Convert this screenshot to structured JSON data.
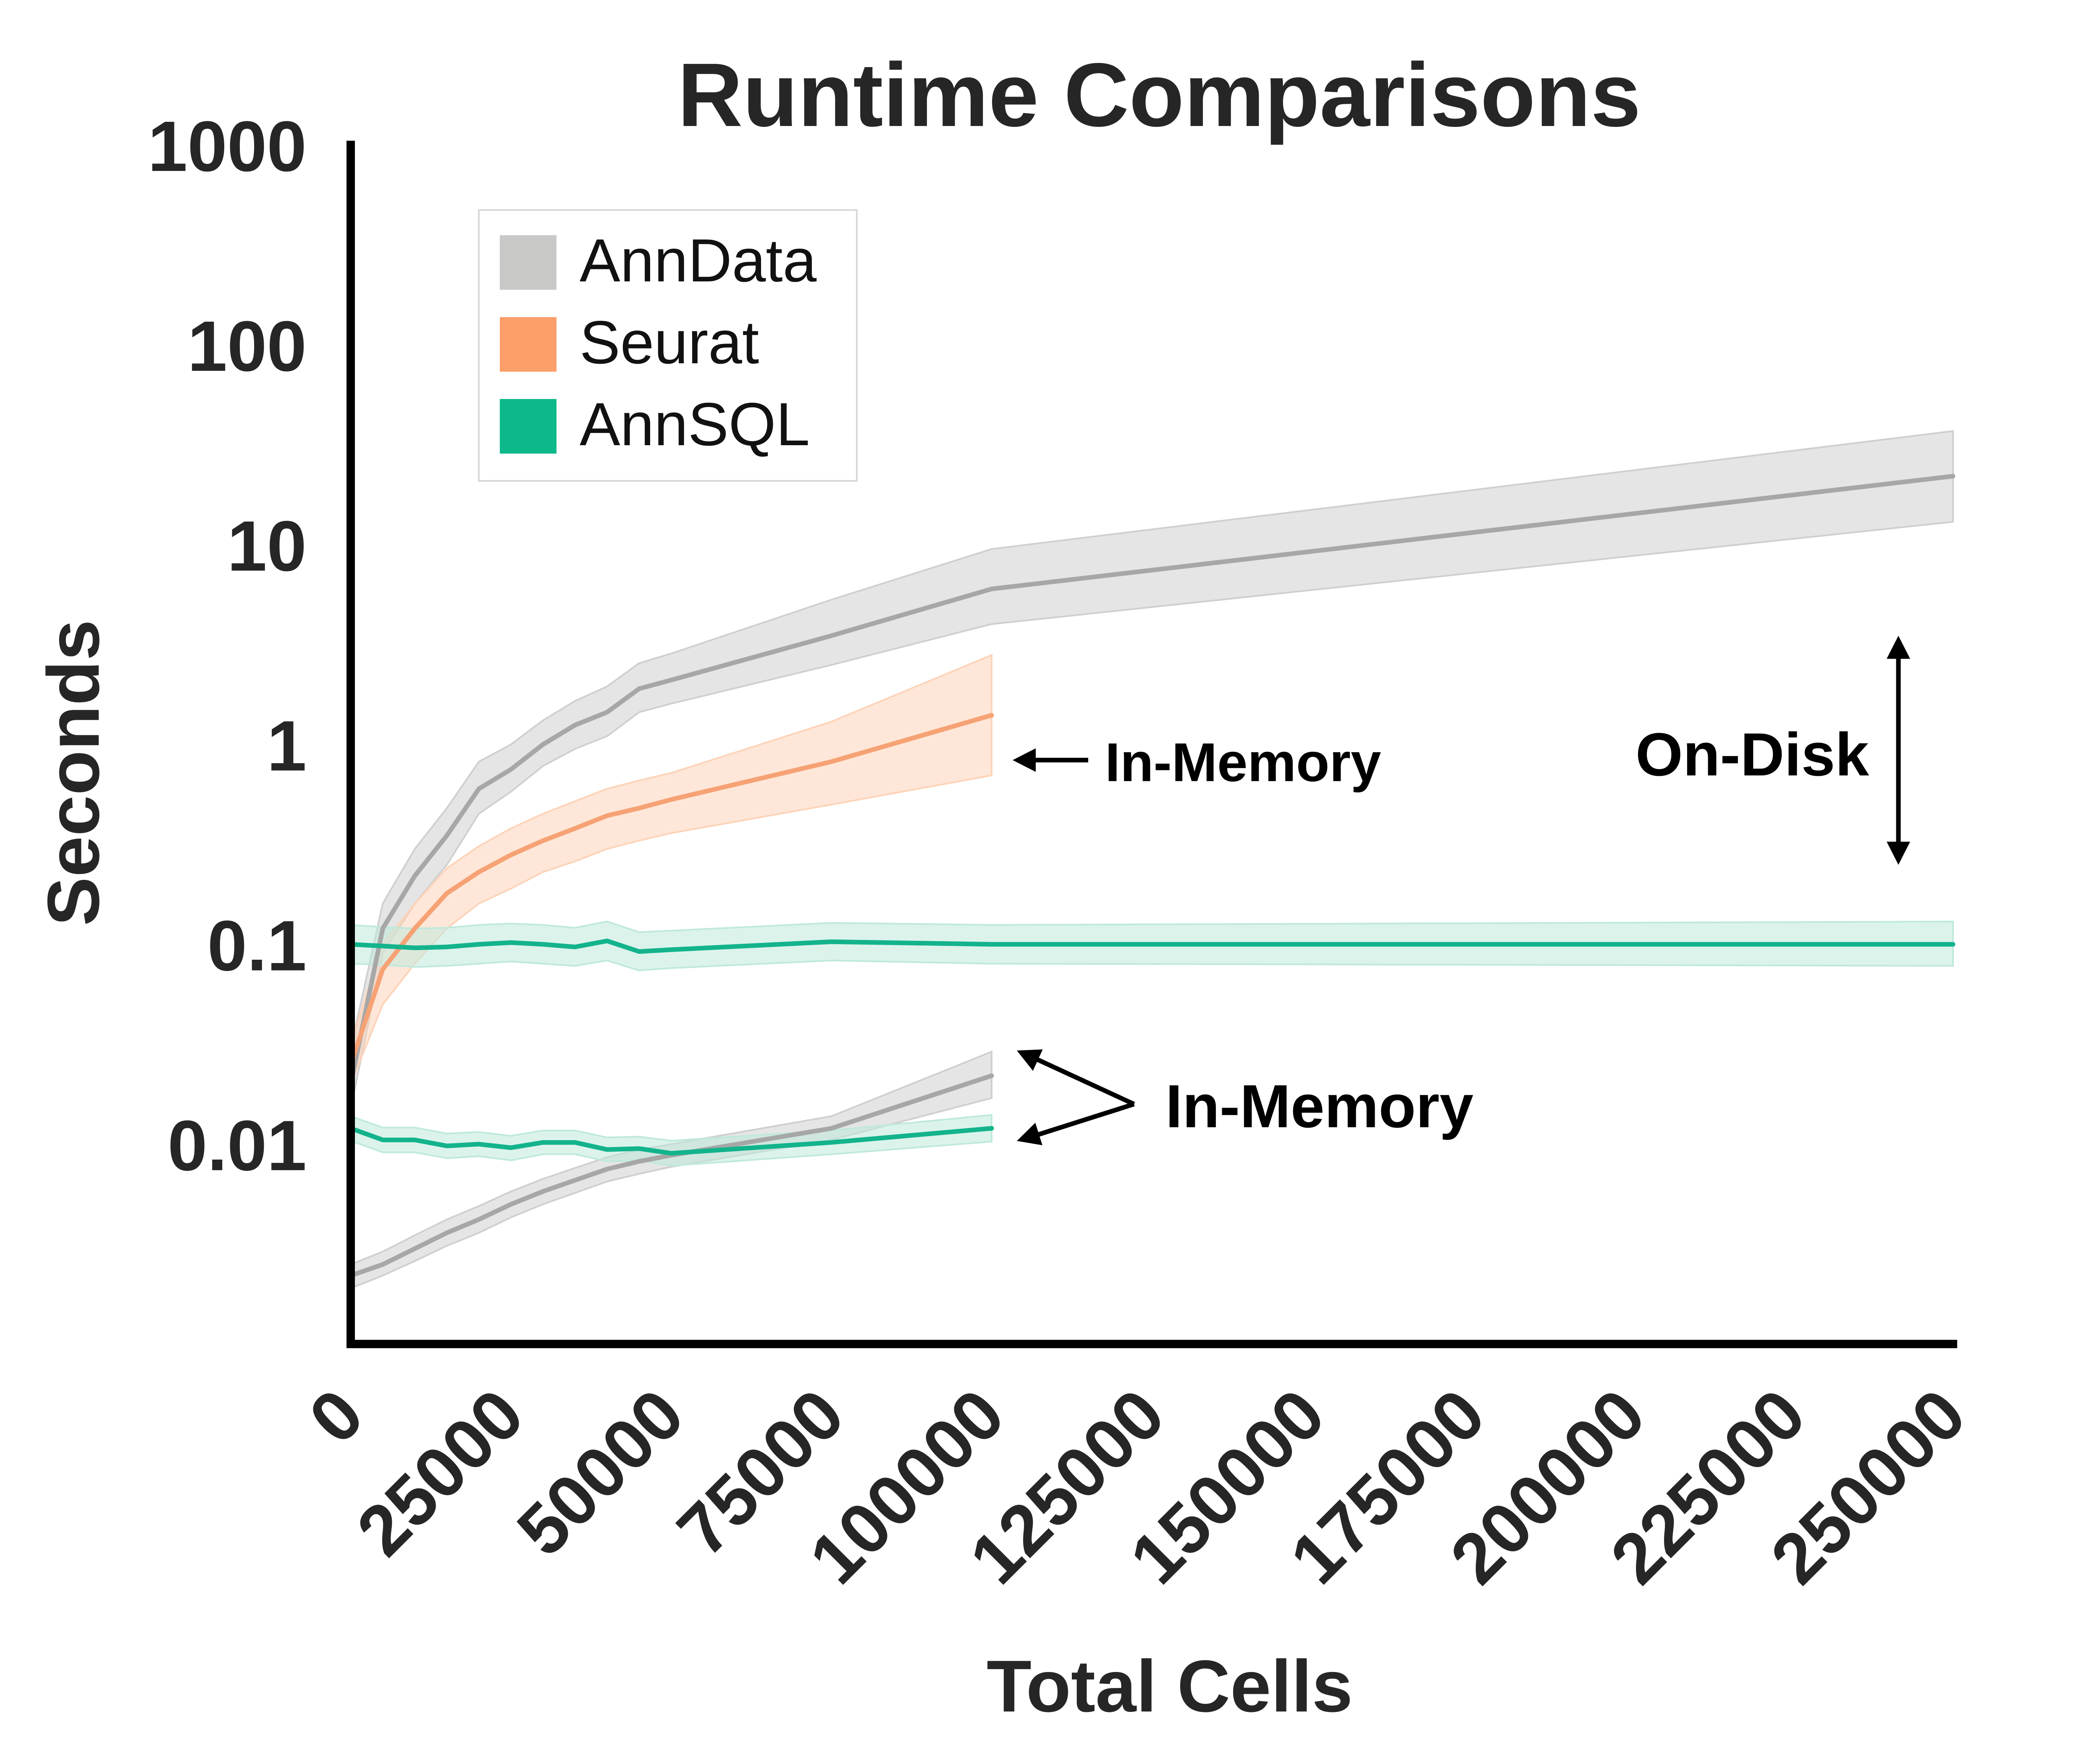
{
  "chart_data": {
    "type": "line",
    "title": "Runtime Comparisons",
    "xlabel": "Total Cells",
    "ylabel": "Seconds",
    "xlim": [
      0,
      250000
    ],
    "ylim": [
      0.001,
      1000
    ],
    "yscale": "log",
    "grid": false,
    "legend_position": "top-left",
    "x_ticks": [
      0,
      25000,
      50000,
      75000,
      100000,
      125000,
      150000,
      175000,
      200000,
      225000,
      250000
    ],
    "x_tick_labels": [
      "0",
      "25000",
      "50000",
      "75000",
      "100000",
      "125000",
      "150000",
      "175000",
      "200000",
      "225000",
      "250000"
    ],
    "y_ticks": [
      0.01,
      0.1,
      1,
      10,
      100,
      1000
    ],
    "y_tick_labels": [
      "0.01",
      "0.1",
      "1",
      "10",
      "100",
      "1000"
    ],
    "legend": [
      {
        "label": "AnnData",
        "color": "#c8c9c7"
      },
      {
        "label": "Seurat",
        "color": "#fc9f6a"
      },
      {
        "label": "AnnSQL",
        "color": "#0db98b"
      }
    ],
    "series": [
      {
        "legend_index": 0,
        "color": "#a7a7a7",
        "band_color": "#cfcfcf",
        "mode": "On-Disk",
        "x": [
          0,
          5000,
          10000,
          15000,
          20000,
          25000,
          30000,
          35000,
          40000,
          45000,
          50000,
          75000,
          100000,
          250000
        ],
        "y": [
          0.02,
          0.12,
          0.22,
          0.35,
          0.6,
          0.75,
          1.0,
          1.25,
          1.45,
          1.9,
          2.1,
          3.5,
          6.0,
          22
        ],
        "lower": [
          0.015,
          0.09,
          0.16,
          0.25,
          0.45,
          0.58,
          0.78,
          0.95,
          1.1,
          1.45,
          1.6,
          2.5,
          4.0,
          13
        ],
        "upper": [
          0.03,
          0.16,
          0.3,
          0.48,
          0.82,
          1.0,
          1.32,
          1.65,
          1.95,
          2.55,
          2.85,
          5.3,
          9.5,
          37
        ]
      },
      {
        "legend_index": 1,
        "color": "#f6a274",
        "band_color": "#fdd3b8",
        "mode": "In-Memory",
        "x": [
          0,
          5000,
          10000,
          15000,
          20000,
          25000,
          30000,
          35000,
          40000,
          45000,
          50000,
          75000,
          100000
        ],
        "y": [
          0.025,
          0.075,
          0.12,
          0.18,
          0.23,
          0.28,
          0.33,
          0.38,
          0.44,
          0.48,
          0.53,
          0.82,
          1.4
        ],
        "lower": [
          0.02,
          0.05,
          0.08,
          0.12,
          0.16,
          0.19,
          0.23,
          0.26,
          0.3,
          0.33,
          0.36,
          0.5,
          0.7
        ],
        "upper": [
          0.032,
          0.1,
          0.16,
          0.24,
          0.31,
          0.38,
          0.45,
          0.52,
          0.6,
          0.66,
          0.72,
          1.3,
          2.8
        ]
      },
      {
        "legend_index": 2,
        "color": "#13b38c",
        "band_color": "#bfe9dc",
        "mode": "On-Disk",
        "x": [
          0,
          5000,
          10000,
          15000,
          20000,
          25000,
          30000,
          35000,
          40000,
          45000,
          50000,
          75000,
          100000,
          250000
        ],
        "y": [
          0.1,
          0.098,
          0.096,
          0.097,
          0.1,
          0.102,
          0.1,
          0.097,
          0.104,
          0.092,
          0.094,
          0.103,
          0.1,
          0.1
        ],
        "lower": [
          0.08,
          0.079,
          0.077,
          0.078,
          0.08,
          0.082,
          0.08,
          0.078,
          0.083,
          0.074,
          0.076,
          0.083,
          0.08,
          0.078
        ],
        "upper": [
          0.125,
          0.122,
          0.12,
          0.121,
          0.125,
          0.127,
          0.125,
          0.121,
          0.13,
          0.115,
          0.117,
          0.128,
          0.125,
          0.13
        ]
      },
      {
        "legend_index": 0,
        "color": "#a7a7a7",
        "band_color": "#cfcfcf",
        "mode": "In-Memory",
        "x": [
          0,
          5000,
          10000,
          15000,
          20000,
          25000,
          30000,
          35000,
          40000,
          45000,
          50000,
          75000,
          100000
        ],
        "y": [
          0.0022,
          0.0025,
          0.003,
          0.0036,
          0.0042,
          0.005,
          0.0058,
          0.0066,
          0.0075,
          0.0082,
          0.0088,
          0.012,
          0.022
        ],
        "lower": [
          0.0019,
          0.0022,
          0.0026,
          0.0031,
          0.0036,
          0.0043,
          0.005,
          0.0057,
          0.0065,
          0.0071,
          0.0077,
          0.0105,
          0.017
        ],
        "upper": [
          0.0025,
          0.0029,
          0.0035,
          0.0042,
          0.0049,
          0.0058,
          0.0067,
          0.0076,
          0.0086,
          0.0094,
          0.01,
          0.0138,
          0.029
        ]
      },
      {
        "legend_index": 2,
        "color": "#13b38c",
        "band_color": "#bfe9dc",
        "mode": "In-Memory",
        "x": [
          0,
          5000,
          10000,
          15000,
          20000,
          25000,
          30000,
          35000,
          40000,
          45000,
          50000,
          75000,
          100000
        ],
        "y": [
          0.012,
          0.0105,
          0.0105,
          0.0098,
          0.01,
          0.0096,
          0.0102,
          0.0102,
          0.0094,
          0.0095,
          0.009,
          0.0102,
          0.012
        ],
        "lower": [
          0.0104,
          0.0091,
          0.0091,
          0.0085,
          0.0087,
          0.0083,
          0.0089,
          0.0089,
          0.0082,
          0.0083,
          0.0078,
          0.0089,
          0.0103
        ],
        "upper": [
          0.0138,
          0.0121,
          0.0121,
          0.0113,
          0.0115,
          0.011,
          0.0117,
          0.0117,
          0.0108,
          0.0109,
          0.0104,
          0.0117,
          0.014
        ]
      }
    ],
    "annotations": [
      {
        "text": "In-Memory",
        "target_series": 1,
        "style": "arrow-left"
      },
      {
        "text": "On-Disk",
        "style": "double-arrow-vertical",
        "y_from": 0.25,
        "y_to": 3.5
      },
      {
        "text": "In-Memory",
        "target_series": [
          3,
          4
        ],
        "style": "forked-arrow"
      }
    ]
  }
}
